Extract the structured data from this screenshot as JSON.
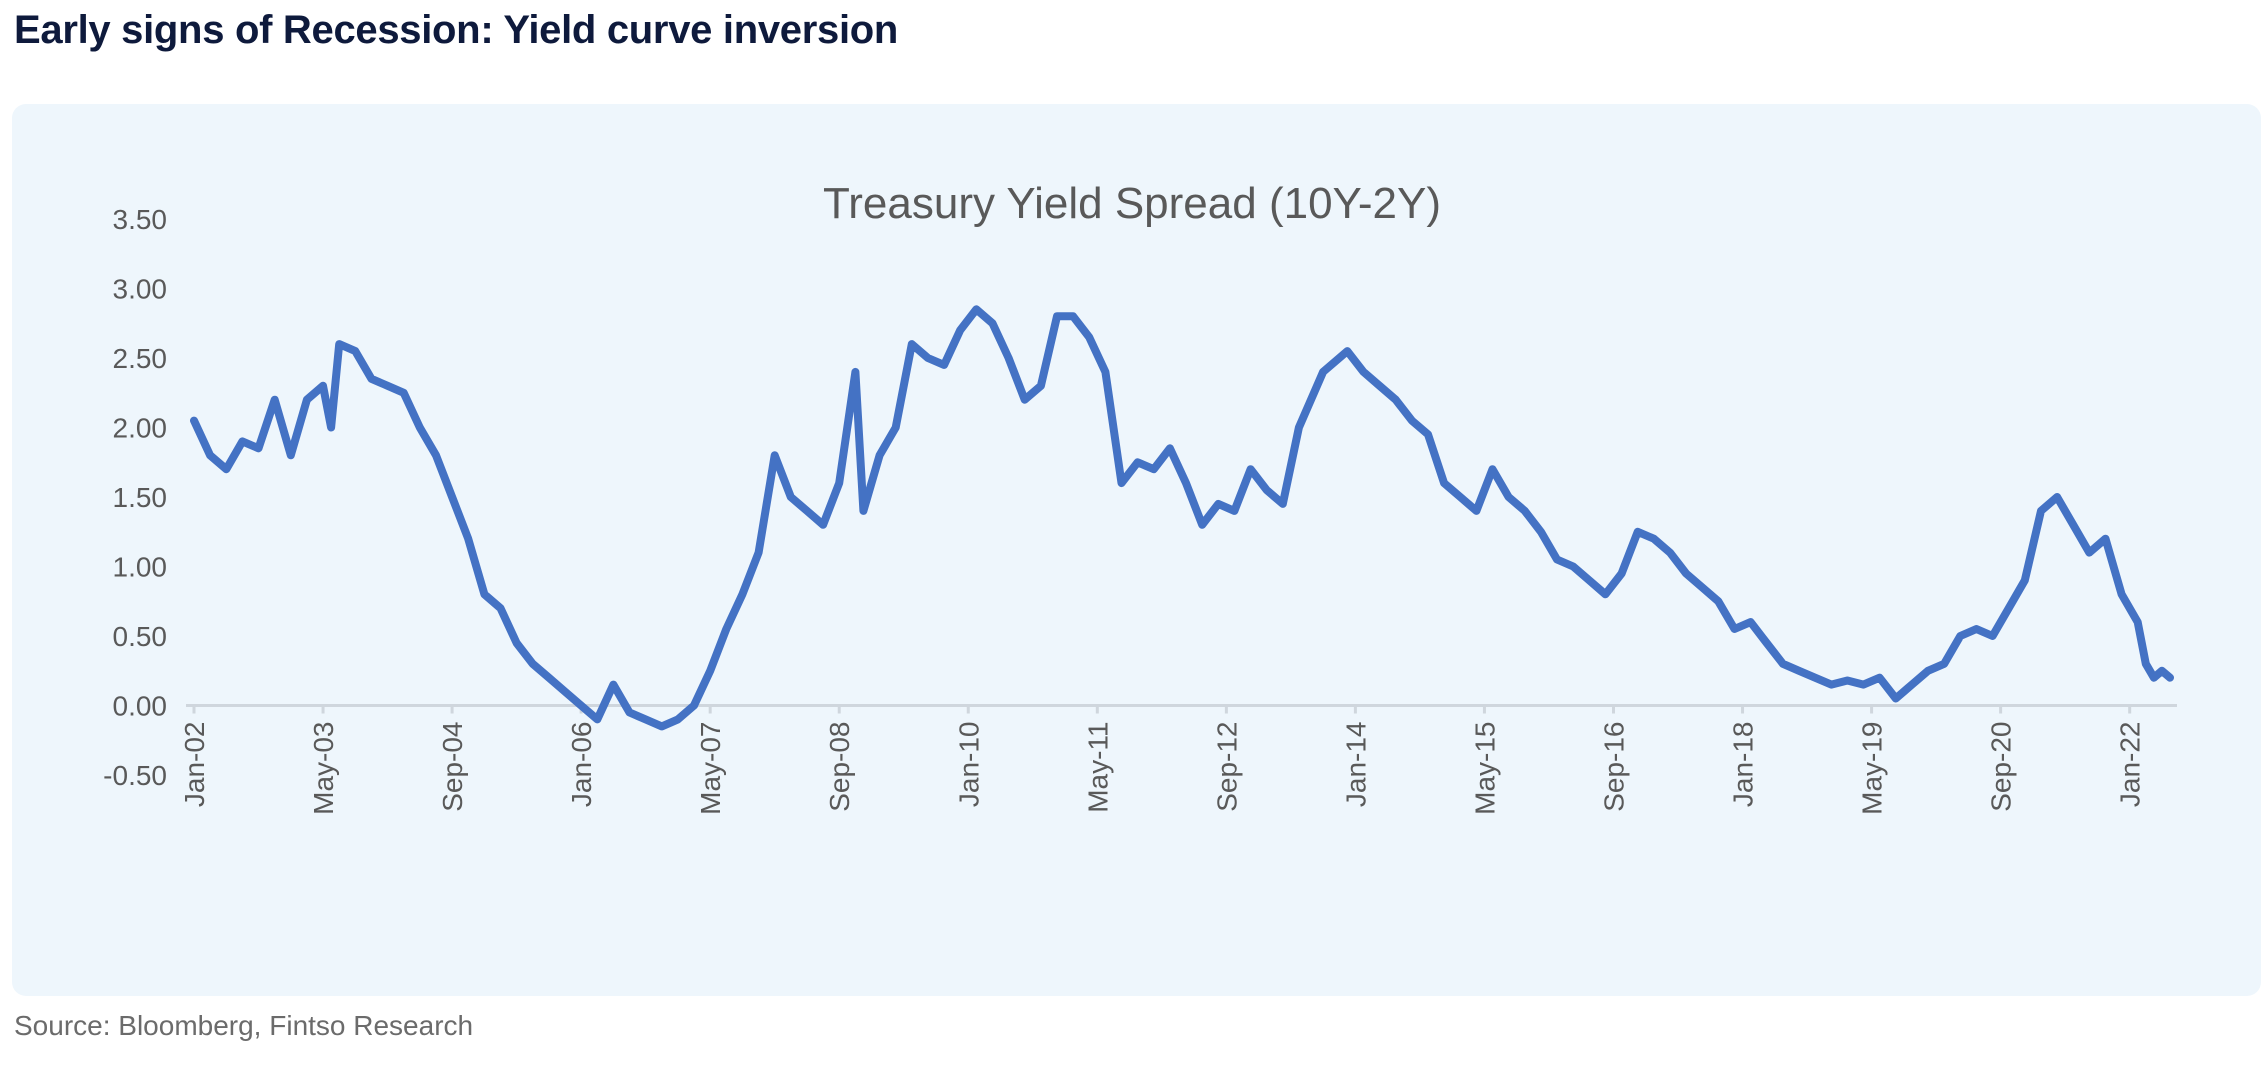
{
  "page_title": "Early signs of Recession: Yield curve inversion",
  "source_note": "Source: Bloomberg, Fintso Research",
  "chart_data": {
    "type": "line",
    "title": "Treasury Yield Spread (10Y-2Y)",
    "xlabel": "",
    "ylabel": "",
    "ylim": [
      -0.5,
      3.5
    ],
    "y_ticks": [
      "3.50",
      "3.00",
      "2.50",
      "2.00",
      "1.50",
      "1.00",
      "0.50",
      "0.00",
      "-0.50"
    ],
    "x_ticks": [
      "Jan-02",
      "May-03",
      "Sep-04",
      "Jan-06",
      "May-07",
      "Sep-08",
      "Jan-10",
      "May-11",
      "Sep-12",
      "Jan-14",
      "May-15",
      "Sep-16",
      "Jan-18",
      "May-19",
      "Sep-20",
      "Jan-22"
    ],
    "grid": false,
    "legend": "none",
    "line_color": "#4472c4",
    "series": [
      {
        "x": [
          "2002-01",
          "2002-03",
          "2002-05",
          "2002-07",
          "2002-09",
          "2002-11",
          "2003-01",
          "2003-03",
          "2003-05",
          "2003-06",
          "2003-07",
          "2003-09",
          "2003-11",
          "2004-01",
          "2004-03",
          "2004-05",
          "2004-07",
          "2004-09",
          "2004-11",
          "2005-01",
          "2005-03",
          "2005-05",
          "2005-07",
          "2005-09",
          "2005-11",
          "2006-01",
          "2006-03",
          "2006-05",
          "2006-07",
          "2006-09",
          "2006-11",
          "2007-01",
          "2007-03",
          "2007-05",
          "2007-07",
          "2007-09",
          "2007-11",
          "2008-01",
          "2008-03",
          "2008-05",
          "2008-07",
          "2008-09",
          "2008-11",
          "2008-12",
          "2009-02",
          "2009-04",
          "2009-06",
          "2009-08",
          "2009-10",
          "2009-12",
          "2010-02",
          "2010-04",
          "2010-06",
          "2010-08",
          "2010-10",
          "2010-12",
          "2011-02",
          "2011-04",
          "2011-06",
          "2011-08",
          "2011-10",
          "2011-12",
          "2012-02",
          "2012-04",
          "2012-06",
          "2012-08",
          "2012-10",
          "2012-12",
          "2013-02",
          "2013-04",
          "2013-06",
          "2013-09",
          "2013-12",
          "2014-02",
          "2014-04",
          "2014-06",
          "2014-08",
          "2014-10",
          "2014-12",
          "2015-02",
          "2015-04",
          "2015-06",
          "2015-08",
          "2015-10",
          "2015-12",
          "2016-02",
          "2016-04",
          "2016-06",
          "2016-08",
          "2016-10",
          "2016-12",
          "2017-02",
          "2017-04",
          "2017-06",
          "2017-08",
          "2017-10",
          "2017-12",
          "2018-02",
          "2018-04",
          "2018-06",
          "2018-08",
          "2018-10",
          "2018-12",
          "2019-02",
          "2019-04",
          "2019-06",
          "2019-08",
          "2019-10",
          "2019-12",
          "2020-02",
          "2020-04",
          "2020-06",
          "2020-08",
          "2020-10",
          "2020-12",
          "2021-02",
          "2021-04",
          "2021-06",
          "2021-08",
          "2021-10",
          "2021-12",
          "2022-02",
          "2022-03",
          "2022-04",
          "2022-05",
          "2022-06"
        ],
        "values": [
          2.05,
          1.8,
          1.7,
          1.9,
          1.85,
          2.2,
          1.8,
          2.2,
          2.3,
          2.0,
          2.6,
          2.55,
          2.35,
          2.3,
          2.25,
          2.0,
          1.8,
          1.5,
          1.2,
          0.8,
          0.7,
          0.45,
          0.3,
          0.2,
          0.1,
          0.0,
          -0.1,
          0.15,
          -0.05,
          -0.1,
          -0.15,
          -0.1,
          0.0,
          0.25,
          0.55,
          0.8,
          1.1,
          1.8,
          1.5,
          1.4,
          1.3,
          1.6,
          2.4,
          1.4,
          1.8,
          2.0,
          2.6,
          2.5,
          2.45,
          2.7,
          2.85,
          2.75,
          2.5,
          2.2,
          2.3,
          2.8,
          2.8,
          2.65,
          2.4,
          1.6,
          1.75,
          1.7,
          1.85,
          1.6,
          1.3,
          1.45,
          1.4,
          1.7,
          1.55,
          1.45,
          2.0,
          2.4,
          2.55,
          2.4,
          2.3,
          2.2,
          2.05,
          1.95,
          1.6,
          1.5,
          1.4,
          1.7,
          1.5,
          1.4,
          1.25,
          1.05,
          1.0,
          0.9,
          0.8,
          0.95,
          1.25,
          1.2,
          1.1,
          0.95,
          0.85,
          0.75,
          0.55,
          0.6,
          0.45,
          0.3,
          0.25,
          0.2,
          0.15,
          0.18,
          0.15,
          0.2,
          0.05,
          0.15,
          0.25,
          0.3,
          0.5,
          0.55,
          0.5,
          0.7,
          0.9,
          1.4,
          1.5,
          1.3,
          1.1,
          1.2,
          0.8,
          0.6,
          0.3,
          0.2,
          0.25,
          0.2
        ]
      }
    ]
  }
}
